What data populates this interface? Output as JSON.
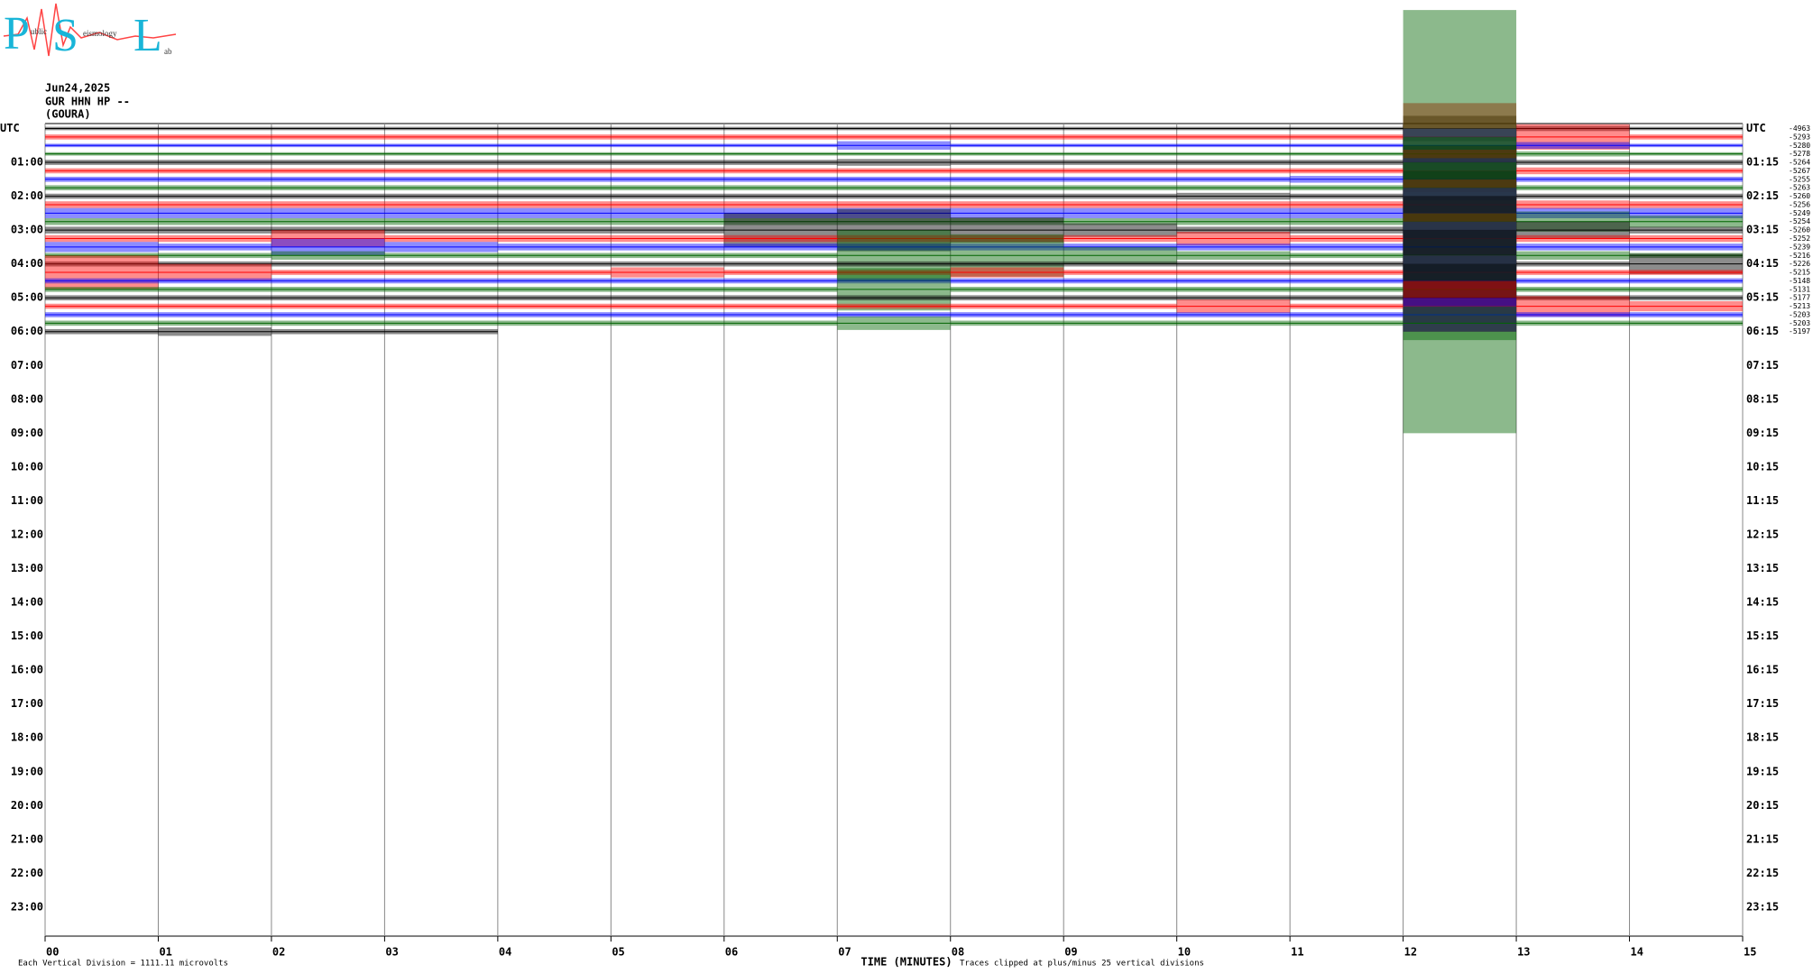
{
  "logo": {
    "p": "P",
    "s": "S",
    "l": "L",
    "words": [
      "ublic",
      "eismology",
      "ab"
    ]
  },
  "header": [
    "Jun24,2025",
    "GUR HHN HP --",
    "(GOURA)"
  ],
  "chart_data": {
    "type": "helicorder",
    "left_labels": [
      "UTC",
      "01:00",
      "02:00",
      "03:00",
      "04:00",
      "05:00",
      "06:00",
      "07:00",
      "08:00",
      "09:00",
      "10:00",
      "11:00",
      "12:00",
      "13:00",
      "14:00",
      "15:00",
      "16:00",
      "17:00",
      "18:00",
      "19:00",
      "20:00",
      "21:00",
      "22:00",
      "23:00"
    ],
    "right_labels": [
      "UTC",
      "01:15",
      "02:15",
      "03:15",
      "04:15",
      "05:15",
      "06:15",
      "07:15",
      "08:15",
      "09:15",
      "10:15",
      "11:15",
      "12:15",
      "13:15",
      "14:15",
      "15:15",
      "16:15",
      "17:15",
      "18:15",
      "19:15",
      "20:15",
      "21:15",
      "22:15",
      "23:15"
    ],
    "x_label": "TIME (MINUTES)",
    "notes": [
      "Each Vertical Division = 1111.11 microvolts",
      "Traces clipped at plus/minus 25 vertical divisions"
    ],
    "xlim": [
      0,
      15
    ],
    "xticks": [
      {
        "value": 0,
        "label": "00"
      },
      {
        "value": 1,
        "label": "01"
      },
      {
        "value": 2,
        "label": "02"
      },
      {
        "value": 3,
        "label": "03"
      },
      {
        "value": 4,
        "label": "04"
      },
      {
        "value": 5,
        "label": "05"
      },
      {
        "value": 6,
        "label": "06"
      },
      {
        "value": 7,
        "label": "07"
      },
      {
        "value": 8,
        "label": "08"
      },
      {
        "value": 9,
        "label": "09"
      },
      {
        "value": 10,
        "label": "10"
      },
      {
        "value": 11,
        "label": "11"
      },
      {
        "value": 12,
        "label": "12"
      },
      {
        "value": 13,
        "label": "13"
      },
      {
        "value": 14,
        "label": "14"
      },
      {
        "value": 15,
        "label": "15"
      }
    ],
    "series": [
      {
        "color": "#000000",
        "offset": -4963,
        "values": [
          0.2,
          0.2,
          0.2,
          0.2,
          0.2,
          0.2,
          0.2,
          0.2,
          0.2,
          0.2,
          0.2,
          0.2,
          1.5,
          0.3,
          0.2
        ]
      },
      {
        "color": "#ff0000",
        "offset": -5293,
        "values": [
          0.3,
          0.3,
          0.3,
          0.3,
          0.3,
          0.3,
          0.3,
          0.3,
          0.3,
          0.3,
          0.3,
          0.3,
          4,
          1.5,
          0.3
        ]
      },
      {
        "color": "#0000ff",
        "offset": -5280,
        "values": [
          0.2,
          0.2,
          0.2,
          0.2,
          0.2,
          0.2,
          0.2,
          0.5,
          0.2,
          0.2,
          0.2,
          0.2,
          2,
          0.4,
          0.2
        ]
      },
      {
        "color": "#006400",
        "offset": -5278,
        "values": [
          0.2,
          0.2,
          0.2,
          0.2,
          0.2,
          0.2,
          0.2,
          0.2,
          0.2,
          0.2,
          0.2,
          0.2,
          2,
          0.3,
          0.2
        ]
      },
      {
        "color": "#000000",
        "offset": -5264,
        "values": [
          0.3,
          0.3,
          0.3,
          0.3,
          0.3,
          0.3,
          0.3,
          0.4,
          0.3,
          0.3,
          0.3,
          0.3,
          2,
          0.3,
          0.3
        ]
      },
      {
        "color": "#ff0000",
        "offset": -5267,
        "values": [
          0.3,
          0.3,
          0.3,
          0.3,
          0.3,
          0.3,
          0.3,
          0.3,
          0.3,
          0.3,
          0.3,
          0.3,
          2.5,
          0.4,
          0.3
        ]
      },
      {
        "color": "#0000ff",
        "offset": -5255,
        "values": [
          0.3,
          0.3,
          0.3,
          0.3,
          0.3,
          0.3,
          0.3,
          0.3,
          0.3,
          0.3,
          0.3,
          0.4,
          2.5,
          0.3,
          0.3
        ]
      },
      {
        "color": "#006400",
        "offset": -5263,
        "values": [
          0.3,
          0.3,
          0.3,
          0.3,
          0.3,
          0.3,
          0.3,
          0.3,
          0.3,
          0.3,
          0.3,
          0.3,
          3,
          0.3,
          0.3
        ]
      },
      {
        "color": "#000000",
        "offset": -5260,
        "values": [
          0.3,
          0.3,
          0.3,
          0.3,
          0.3,
          0.3,
          0.3,
          0.3,
          0.3,
          0.3,
          0.4,
          0.3,
          3,
          0.3,
          0.3
        ]
      },
      {
        "color": "#ff0000",
        "offset": -5256,
        "values": [
          0.4,
          0.4,
          0.4,
          0.4,
          0.4,
          0.4,
          0.4,
          0.4,
          0.4,
          0.4,
          0.4,
          0.4,
          3,
          0.5,
          0.4
        ]
      },
      {
        "color": "#0000ff",
        "offset": -5249,
        "values": [
          0.6,
          0.6,
          0.6,
          0.6,
          0.6,
          0.6,
          0.6,
          0.6,
          0.6,
          0.6,
          0.6,
          0.6,
          3,
          0.6,
          0.6
        ]
      },
      {
        "color": "#006400",
        "offset": -5254,
        "values": [
          0.4,
          0.4,
          0.4,
          0.4,
          0.4,
          0.4,
          0.4,
          0.4,
          0.4,
          0.4,
          0.4,
          0.4,
          25,
          1.2,
          0.7
        ]
      },
      {
        "color": "#000000",
        "offset": -5260,
        "values": [
          0.4,
          0.4,
          0.4,
          0.4,
          0.4,
          0.4,
          2,
          2.5,
          1.5,
          0.8,
          0.4,
          0.4,
          4,
          1,
          0.4
        ]
      },
      {
        "color": "#ff0000",
        "offset": -5252,
        "values": [
          0.4,
          0.4,
          1,
          0.4,
          0.4,
          0.4,
          0.4,
          0.4,
          0.4,
          0.4,
          0.8,
          0.4,
          3,
          0.4,
          0.4
        ]
      },
      {
        "color": "#0000ff",
        "offset": -5239,
        "values": [
          0.6,
          0.4,
          1,
          0.6,
          0.4,
          0.4,
          0.4,
          0.4,
          0.4,
          0.4,
          0.4,
          0.4,
          3,
          0.4,
          0.4
        ]
      },
      {
        "color": "#006400",
        "offset": -5216,
        "values": [
          0.3,
          0.3,
          0.5,
          0.3,
          0.3,
          0.3,
          0.3,
          3,
          2.5,
          1,
          0.5,
          0.3,
          5,
          0.5,
          0.3
        ]
      },
      {
        "color": "#000000",
        "offset": -5226,
        "values": [
          0.3,
          0.3,
          0.3,
          0.3,
          0.3,
          0.3,
          0.3,
          0.3,
          0.3,
          0.3,
          0.3,
          0.3,
          4,
          0.3,
          1.2
        ]
      },
      {
        "color": "#ff0000",
        "offset": -5215,
        "values": [
          2,
          1,
          0.3,
          0.3,
          0.3,
          0.6,
          0.3,
          0.3,
          0.6,
          0.3,
          0.3,
          0.3,
          2,
          0.3,
          0.3
        ]
      },
      {
        "color": "#0000ff",
        "offset": -5148,
        "values": [
          0.3,
          0.3,
          0.3,
          0.3,
          0.3,
          0.3,
          0.3,
          0.3,
          0.3,
          0.3,
          0.3,
          0.3,
          3,
          0.3,
          0.3
        ]
      },
      {
        "color": "#006400",
        "offset": -5131,
        "values": [
          0.3,
          0.3,
          0.3,
          0.3,
          0.3,
          0.3,
          0.3,
          2.5,
          0.3,
          0.3,
          0.3,
          0.3,
          4,
          0.3,
          0.3
        ]
      },
      {
        "color": "#000000",
        "offset": -5177,
        "values": [
          0.3,
          0.3,
          0.3,
          0.3,
          0.3,
          0.3,
          0.3,
          0.3,
          0.3,
          0.3,
          0.3,
          0.3,
          4,
          0.3,
          0.3
        ]
      },
      {
        "color": "#ff0000",
        "offset": -5213,
        "values": [
          0.3,
          0.3,
          0.3,
          0.3,
          0.3,
          0.3,
          0.3,
          0.3,
          0.3,
          0.3,
          0.8,
          0.3,
          3,
          1.2,
          0.6
        ]
      },
      {
        "color": "#0000ff",
        "offset": -5203,
        "values": [
          0.3,
          0.3,
          0.3,
          0.3,
          0.3,
          0.3,
          0.3,
          0.3,
          0.3,
          0.3,
          0.3,
          0.3,
          2,
          0.3,
          0.3
        ]
      },
      {
        "color": "#006400",
        "offset": -5203,
        "values": [
          0.3,
          0.3,
          0.3,
          0.3,
          0.3,
          0.3,
          0.3,
          0.8,
          0.3,
          0.3,
          0.3,
          0.3,
          2,
          0.3,
          0.3
        ]
      },
      {
        "color": "#000000",
        "offset": -5197,
        "values": [
          0.3,
          0.5,
          0.3,
          0.3,
          null,
          null,
          null,
          null,
          null,
          null,
          null,
          null,
          null,
          null,
          null
        ]
      }
    ]
  }
}
